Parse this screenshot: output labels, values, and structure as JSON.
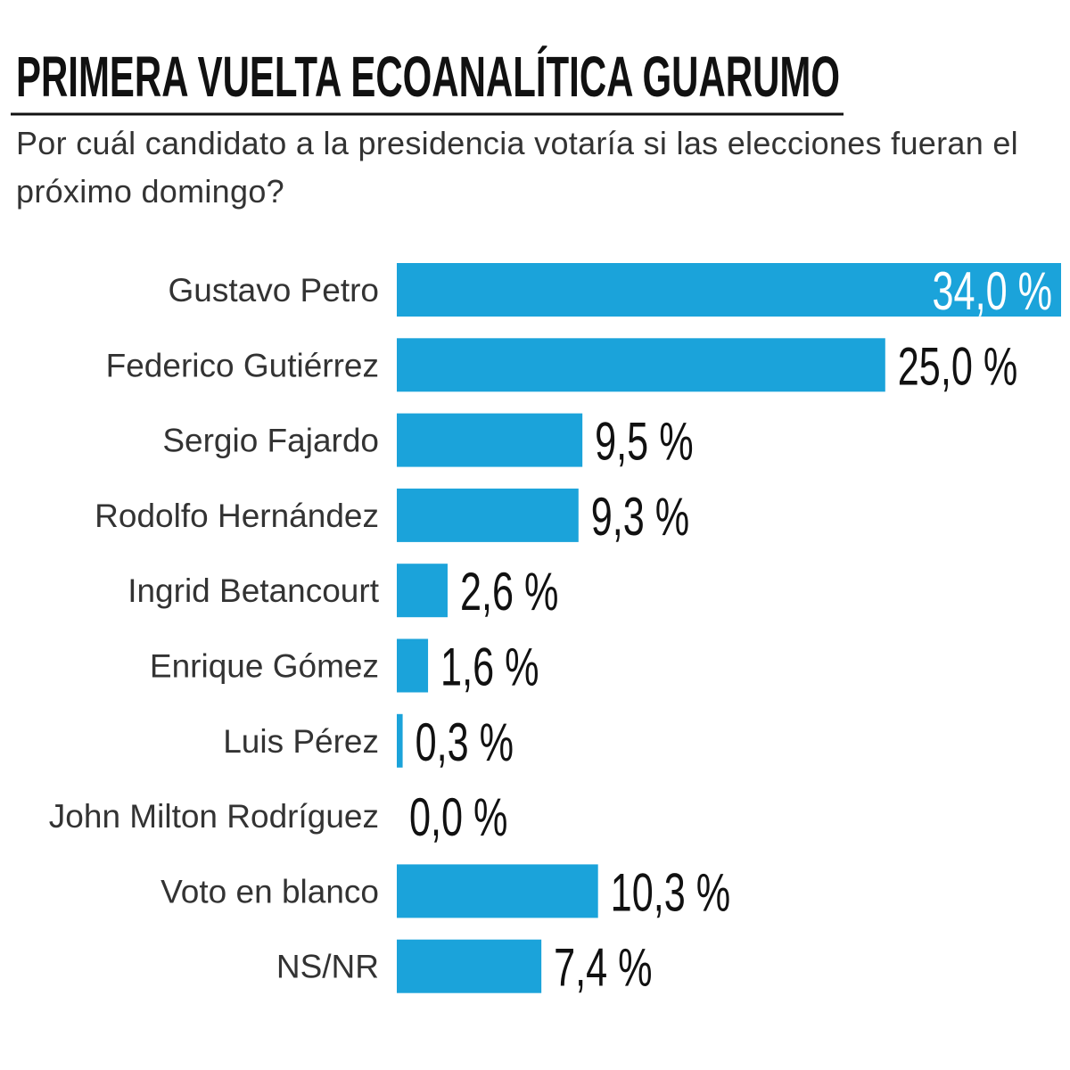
{
  "chart_data": {
    "type": "hbar",
    "title": "PRIMERA VUELTA ECOANALÍTICA GUARUMO",
    "subtitle": "Por cuál candidato a la presidencia votaría si las elecciones fueran el próximo domingo?",
    "categories": [
      "Gustavo Petro",
      "Federico Gutiérrez",
      "Sergio Fajardo",
      "Rodolfo Hernández",
      "Ingrid Betancourt",
      "Enrique Gómez",
      "Luis Pérez",
      "John Milton Rodríguez",
      "Voto en blanco",
      "NS/NR"
    ],
    "values": [
      34.0,
      25.0,
      9.5,
      9.3,
      2.6,
      1.6,
      0.3,
      0.0,
      10.3,
      7.4
    ],
    "value_labels": [
      "34,0 %",
      "25,0 %",
      "9,5 %",
      "9,3 %",
      "2,6 %",
      "1,6 %",
      "0,3 %",
      "0,0 %",
      "10,3 %",
      "7,4 %"
    ],
    "color": "#1ba3da"
  }
}
